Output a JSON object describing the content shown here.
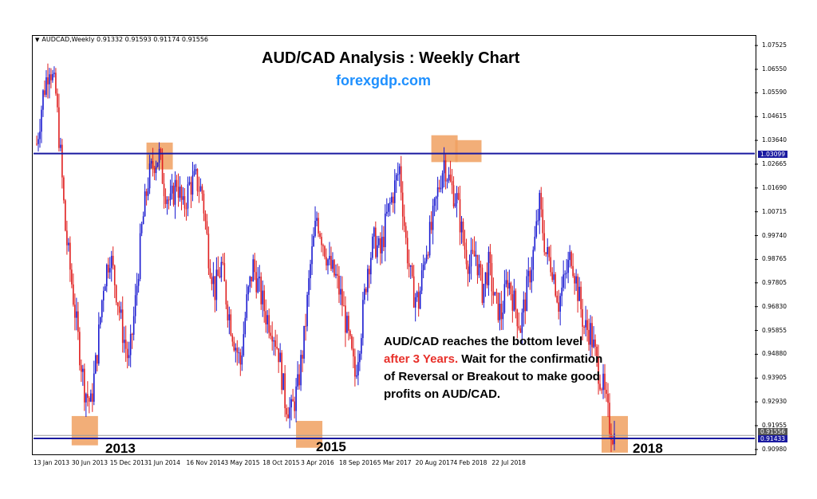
{
  "header": {
    "symbol_line": "AUDCAD,Weekly  0.91332 0.91593 0.91174 0.91556"
  },
  "title": "AUD/CAD Analysis : Weekly Chart",
  "website": "forexgdp.com",
  "annotation": {
    "part1": "AUD/CAD reaches the bottom level ",
    "highlight": "after 3 Years.",
    "part2": " Wait for the confirmation of Reversal or Breakout to make good profits on AUD/CAD."
  },
  "year_labels": [
    "2013",
    "2015",
    "2018"
  ],
  "colors": {
    "bull": "#1a1ad0",
    "bear": "#e02020",
    "level": "#1a1aa0",
    "box": "#f0a060"
  },
  "chart_data": {
    "type": "candlestick",
    "symbol": "AUDCAD",
    "timeframe": "Weekly",
    "last_ohlc": {
      "open": 0.91332,
      "high": 0.91593,
      "low": 0.91174,
      "close": 0.91556
    },
    "x_ticks": [
      "13 Jan 2013",
      "30 Jun 2013",
      "15 Dec 2013",
      "1 Jun 2014",
      "16 Nov 2014",
      "3 May 2015",
      "18 Oct 2015",
      "3 Apr 2016",
      "18 Sep 2016",
      "5 Mar 2017",
      "20 Aug 2017",
      "4 Feb 2018",
      "22 Jul 2018"
    ],
    "y_ticks": [
      1.07525,
      1.0655,
      1.0559,
      1.04615,
      1.0364,
      1.02665,
      1.0169,
      1.00715,
      0.9974,
      0.98765,
      0.97805,
      0.9683,
      0.95855,
      0.9488,
      0.93905,
      0.9293,
      0.91955,
      0.9098
    ],
    "ylim": [
      0.9078,
      1.0792
    ],
    "levels": [
      {
        "name": "resistance",
        "value": 1.03099,
        "label": "1.03099"
      },
      {
        "name": "support",
        "value": 0.91433,
        "label": "0.91433"
      },
      {
        "name": "current",
        "value": 0.91556,
        "label": "0.91556"
      }
    ],
    "close_path": [
      [
        0,
        1.035
      ],
      [
        4,
        1.055
      ],
      [
        8,
        1.068
      ],
      [
        12,
        1.055
      ],
      [
        15,
        1.03
      ],
      [
        18,
        1.0
      ],
      [
        22,
        0.978
      ],
      [
        26,
        0.955
      ],
      [
        30,
        0.935
      ],
      [
        34,
        0.928
      ],
      [
        38,
        0.95
      ],
      [
        42,
        0.978
      ],
      [
        46,
        0.99
      ],
      [
        50,
        0.975
      ],
      [
        54,
        0.958
      ],
      [
        58,
        0.945
      ],
      [
        62,
        0.97
      ],
      [
        66,
        1.0
      ],
      [
        70,
        1.02
      ],
      [
        74,
        1.028
      ],
      [
        77,
        1.03
      ],
      [
        80,
        1.018
      ],
      [
        84,
        1.01
      ],
      [
        88,
        1.02
      ],
      [
        92,
        1.008
      ],
      [
        96,
        1.018
      ],
      [
        100,
        1.02
      ],
      [
        104,
        1.015
      ],
      [
        108,
        0.99
      ],
      [
        112,
        0.975
      ],
      [
        116,
        0.985
      ],
      [
        120,
        0.968
      ],
      [
        124,
        0.955
      ],
      [
        128,
        0.945
      ],
      [
        132,
        0.97
      ],
      [
        136,
        0.985
      ],
      [
        140,
        0.975
      ],
      [
        144,
        0.965
      ],
      [
        148,
        0.96
      ],
      [
        152,
        0.95
      ],
      [
        156,
        0.93
      ],
      [
        160,
        0.925
      ],
      [
        164,
        0.935
      ],
      [
        168,
        0.955
      ],
      [
        172,
        0.985
      ],
      [
        176,
        1.005
      ],
      [
        180,
        0.995
      ],
      [
        184,
        0.985
      ],
      [
        188,
        0.98
      ],
      [
        192,
        0.97
      ],
      [
        196,
        0.955
      ],
      [
        200,
        0.94
      ],
      [
        204,
        0.96
      ],
      [
        208,
        0.985
      ],
      [
        212,
        0.995
      ],
      [
        216,
        0.99
      ],
      [
        220,
        1.005
      ],
      [
        224,
        1.015
      ],
      [
        228,
        1.025
      ],
      [
        232,
        0.995
      ],
      [
        236,
        0.975
      ],
      [
        240,
        0.97
      ],
      [
        244,
        0.99
      ],
      [
        248,
        1.0
      ],
      [
        252,
        1.015
      ],
      [
        256,
        1.028
      ],
      [
        260,
        1.018
      ],
      [
        264,
        1.012
      ],
      [
        268,
        0.995
      ],
      [
        272,
        0.985
      ],
      [
        276,
        0.99
      ],
      [
        280,
        0.975
      ],
      [
        284,
        0.985
      ],
      [
        288,
        0.97
      ],
      [
        292,
        0.965
      ],
      [
        296,
        0.98
      ],
      [
        300,
        0.97
      ],
      [
        304,
        0.96
      ],
      [
        308,
        0.975
      ],
      [
        312,
        0.99
      ],
      [
        316,
        1.01
      ],
      [
        320,
        0.99
      ],
      [
        324,
        0.985
      ],
      [
        328,
        0.97
      ],
      [
        332,
        0.98
      ],
      [
        336,
        0.99
      ],
      [
        340,
        0.975
      ],
      [
        344,
        0.96
      ],
      [
        348,
        0.958
      ],
      [
        352,
        0.945
      ],
      [
        356,
        0.935
      ],
      [
        360,
        0.92
      ],
      [
        363,
        0.915
      ]
    ]
  }
}
